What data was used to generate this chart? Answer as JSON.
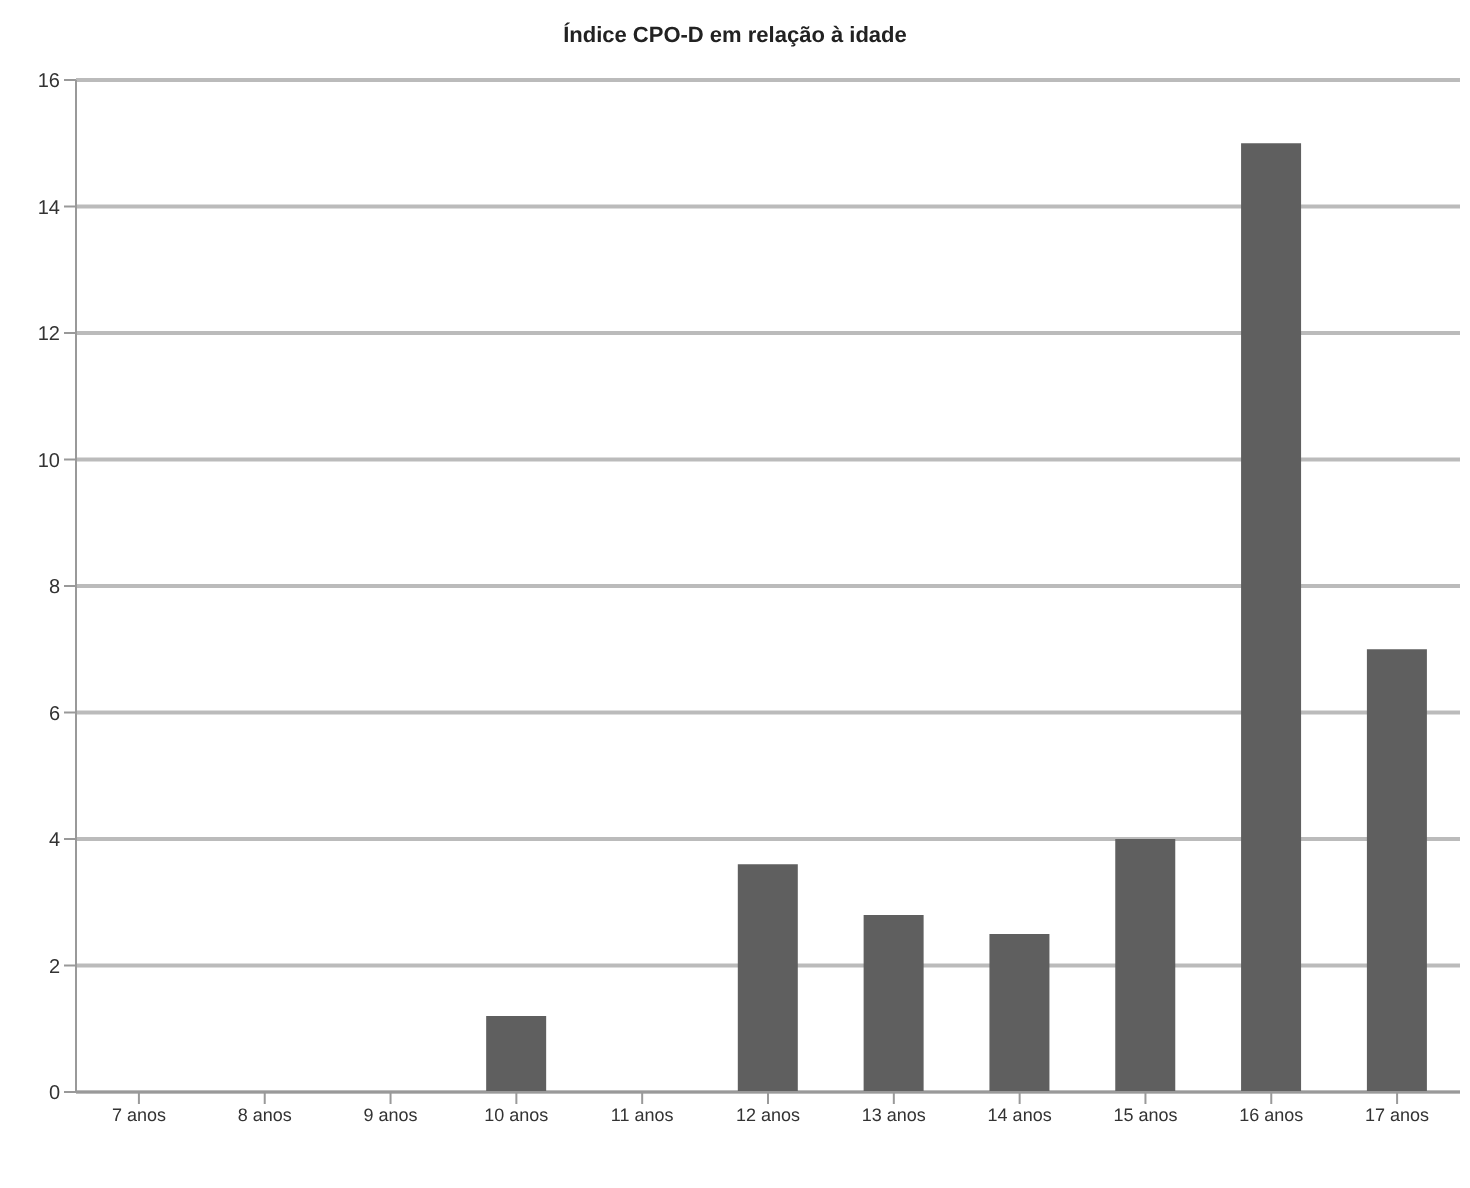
{
  "chart_data": {
    "type": "bar",
    "title": "Índice CPO-D em relação à idade",
    "categories": [
      "7 anos",
      "8 anos",
      "9 anos",
      "10 anos",
      "11 anos",
      "12 anos",
      "13 anos",
      "14 anos",
      "15 anos",
      "16 anos",
      "17 anos"
    ],
    "values": [
      0,
      0,
      0,
      1.2,
      0,
      3.6,
      2.8,
      2.5,
      4,
      15,
      7
    ],
    "color": "#5f5f5f",
    "ylim": [
      0,
      16
    ],
    "yticks": [
      0,
      2,
      4,
      6,
      8,
      10,
      12,
      14,
      16
    ],
    "grid": "y"
  }
}
